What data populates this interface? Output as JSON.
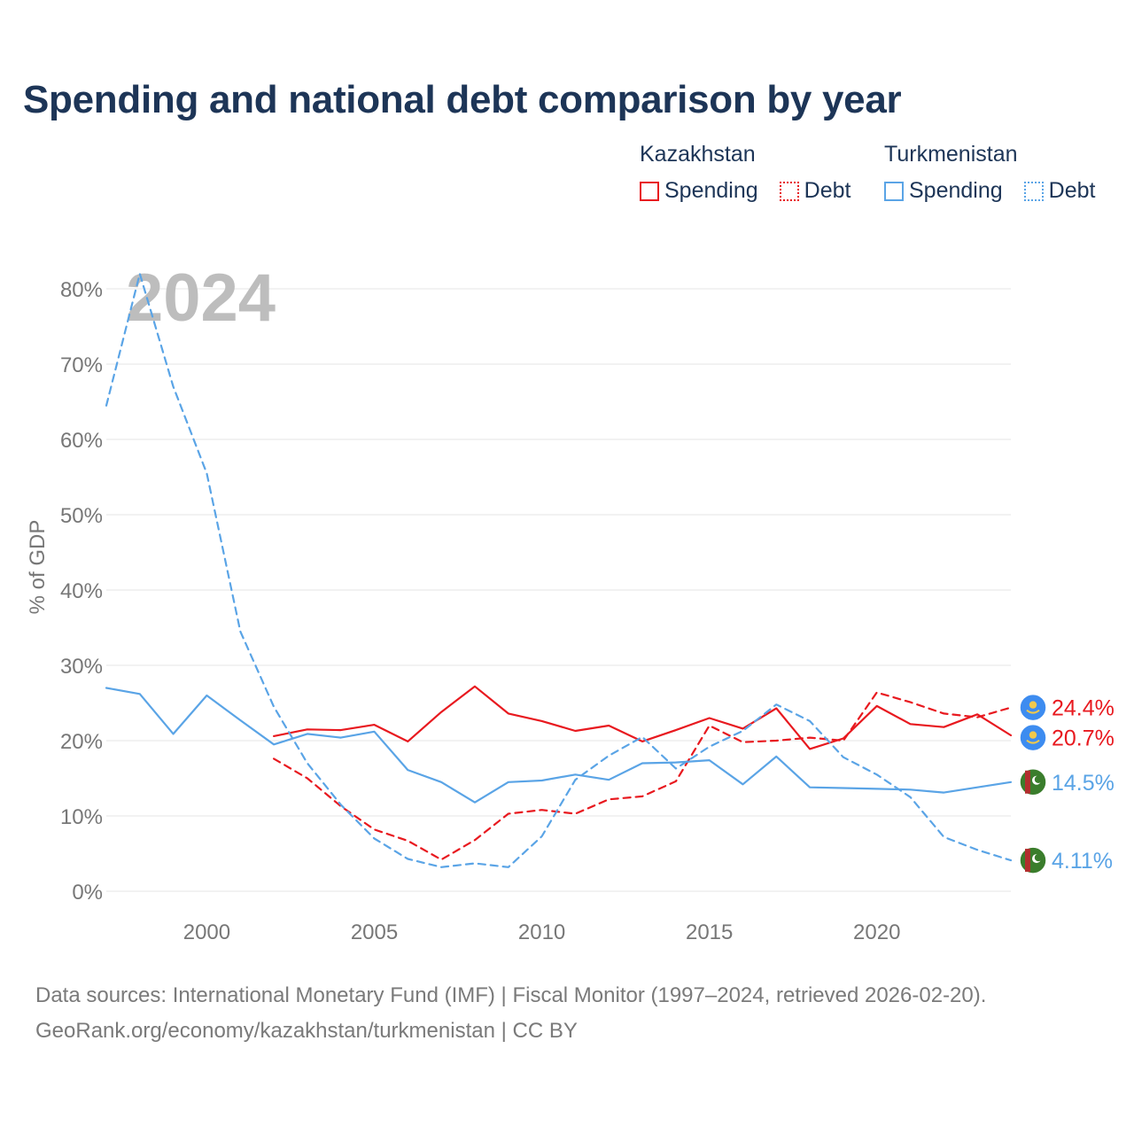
{
  "title": "Spending and national debt comparison by year",
  "legend": {
    "groups": [
      {
        "name": "Kazakhstan",
        "color": "#e8191f",
        "items": [
          "Spending",
          "Debt"
        ]
      },
      {
        "name": "Turkmenistan",
        "color": "#5aa4e6",
        "items": [
          "Spending",
          "Debt"
        ]
      }
    ]
  },
  "footer": {
    "line1": "Data sources: International Monetary Fund (IMF) | Fiscal Monitor (1997–2024, retrieved 2026-02-20).",
    "line2": "GeoRank.org/economy/kazakhstan/turkmenistan | CC BY"
  },
  "chart_data": {
    "type": "line",
    "title": "Spending and national debt comparison by year",
    "watermark_year": "2024",
    "ylabel": "% of GDP",
    "xlabel": "",
    "xlim": [
      1997,
      2024
    ],
    "ylim": [
      0,
      80
    ],
    "y_ticks": [
      0,
      10,
      20,
      30,
      40,
      50,
      60,
      70,
      80
    ],
    "y_tick_labels": [
      "0%",
      "10%",
      "20%",
      "30%",
      "40%",
      "50%",
      "60%",
      "70%",
      "80%"
    ],
    "x_ticks": [
      2000,
      2005,
      2010,
      2015,
      2020
    ],
    "x_tick_labels": [
      "2000",
      "2005",
      "2010",
      "2015",
      "2020"
    ],
    "grid": true,
    "series": [
      {
        "name": "Kazakhstan Spending",
        "country": "Kazakhstan",
        "metric": "Spending",
        "color": "#e8191f",
        "dash": "solid",
        "x": [
          2002,
          2003,
          2004,
          2005,
          2006,
          2007,
          2008,
          2009,
          2010,
          2011,
          2012,
          2013,
          2014,
          2015,
          2016,
          2017,
          2018,
          2019,
          2020,
          2021,
          2022,
          2023,
          2024
        ],
        "values": [
          20.6,
          21.5,
          21.4,
          22.1,
          19.9,
          23.8,
          27.2,
          23.6,
          22.6,
          21.3,
          22.0,
          19.9,
          21.4,
          23.0,
          21.6,
          24.3,
          18.9,
          20.3,
          24.6,
          22.2,
          21.8,
          23.5,
          20.7
        ],
        "end_label": "20.7%"
      },
      {
        "name": "Kazakhstan Debt",
        "country": "Kazakhstan",
        "metric": "Debt",
        "color": "#e8191f",
        "dash": "dashed",
        "x": [
          2002,
          2003,
          2004,
          2005,
          2006,
          2007,
          2008,
          2009,
          2010,
          2011,
          2012,
          2013,
          2014,
          2015,
          2016,
          2017,
          2018,
          2019,
          2020,
          2021,
          2022,
          2023,
          2024
        ],
        "values": [
          17.6,
          15.0,
          11.3,
          8.2,
          6.7,
          4.2,
          6.8,
          10.3,
          10.8,
          10.3,
          12.2,
          12.6,
          14.6,
          22.0,
          19.8,
          20.0,
          20.4,
          20.0,
          26.4,
          25.1,
          23.6,
          23.1,
          24.4
        ],
        "end_label": "24.4%"
      },
      {
        "name": "Turkmenistan Spending",
        "country": "Turkmenistan",
        "metric": "Spending",
        "color": "#5aa4e6",
        "dash": "solid",
        "x": [
          1997,
          1998,
          1999,
          2000,
          2001,
          2002,
          2003,
          2004,
          2005,
          2006,
          2007,
          2008,
          2009,
          2010,
          2011,
          2012,
          2013,
          2014,
          2015,
          2016,
          2017,
          2018,
          2019,
          2020,
          2021,
          2022,
          2023,
          2024
        ],
        "values": [
          27.0,
          26.2,
          20.9,
          26.0,
          22.7,
          19.5,
          20.9,
          20.4,
          21.2,
          16.1,
          14.5,
          11.8,
          14.5,
          14.7,
          15.5,
          14.8,
          17.0,
          17.1,
          17.4,
          14.2,
          17.9,
          13.8,
          13.7,
          13.6,
          13.5,
          13.1,
          13.8,
          14.5
        ],
        "end_label": "14.5%"
      },
      {
        "name": "Turkmenistan Debt",
        "country": "Turkmenistan",
        "metric": "Debt",
        "color": "#5aa4e6",
        "dash": "dashed",
        "x": [
          1997,
          1998,
          1999,
          2000,
          2001,
          2002,
          2003,
          2004,
          2005,
          2006,
          2007,
          2008,
          2009,
          2010,
          2011,
          2012,
          2013,
          2014,
          2015,
          2016,
          2017,
          2018,
          2019,
          2020,
          2021,
          2022,
          2023,
          2024
        ],
        "values": [
          64.5,
          82.0,
          67.0,
          55.5,
          34.5,
          24.5,
          17.0,
          11.5,
          7.0,
          4.3,
          3.2,
          3.7,
          3.2,
          7.3,
          14.8,
          18.0,
          20.5,
          16.3,
          19.2,
          21.3,
          24.8,
          22.6,
          17.8,
          15.5,
          12.5,
          7.2,
          5.5,
          4.11
        ],
        "end_label": "4.11%"
      }
    ]
  }
}
